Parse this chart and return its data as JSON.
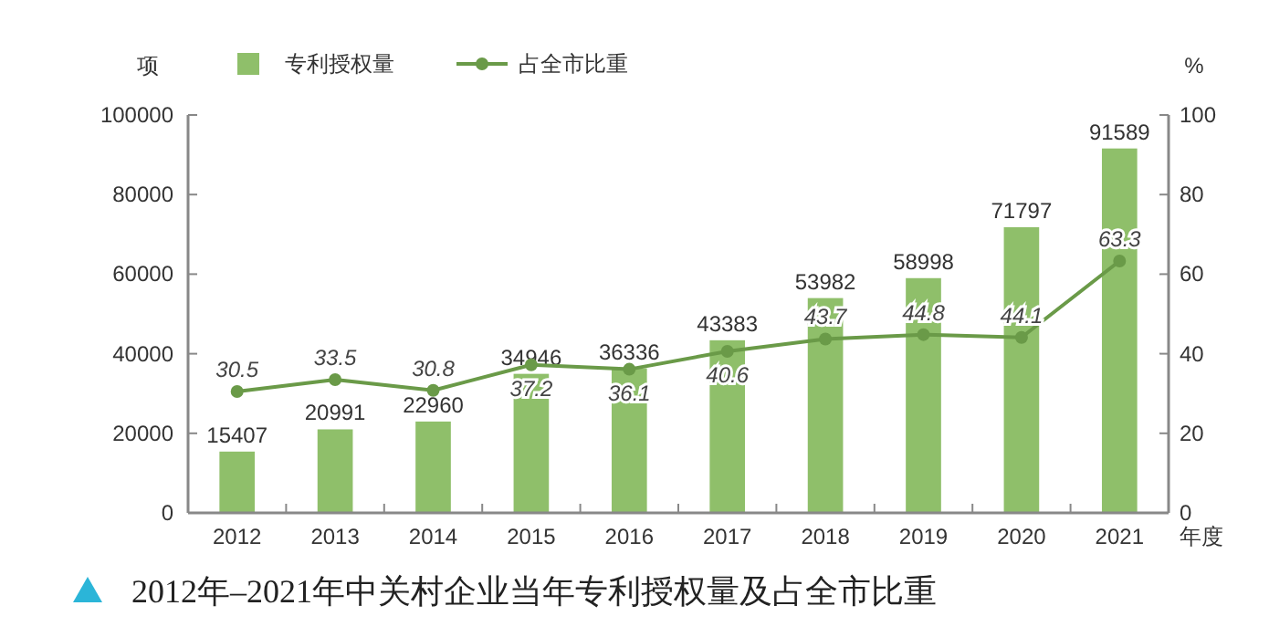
{
  "chart_data": {
    "type": "bar",
    "title": "2012年–2021年中关村企业当年专利授权量及占全市比重",
    "ylabel": "项",
    "y2label": "%",
    "xlabel": "年度",
    "categories": [
      "2012",
      "2013",
      "2014",
      "2015",
      "2016",
      "2017",
      "2018",
      "2019",
      "2020",
      "2021"
    ],
    "series": [
      {
        "name": "专利授权量",
        "color": "#8fbf6a",
        "values": [
          15407,
          20991,
          22960,
          34946,
          36336,
          43383,
          53982,
          58998,
          71797,
          91589
        ]
      },
      {
        "name": "占全市比重",
        "type": "line",
        "axis": "y2",
        "color": "#6a9a48",
        "values": [
          30.5,
          33.5,
          30.8,
          37.2,
          36.1,
          40.6,
          43.7,
          44.8,
          44.1,
          63.3
        ]
      }
    ],
    "ylim": [
      0,
      100000
    ],
    "yticks": [
      0,
      20000,
      40000,
      60000,
      80000,
      100000
    ],
    "y2lim": [
      0,
      100
    ],
    "y2ticks": [
      0,
      20,
      40,
      60,
      80,
      100
    ],
    "data_labels": true,
    "legend": "top",
    "marker": "circle",
    "line_style": "solid",
    "grid": false
  }
}
